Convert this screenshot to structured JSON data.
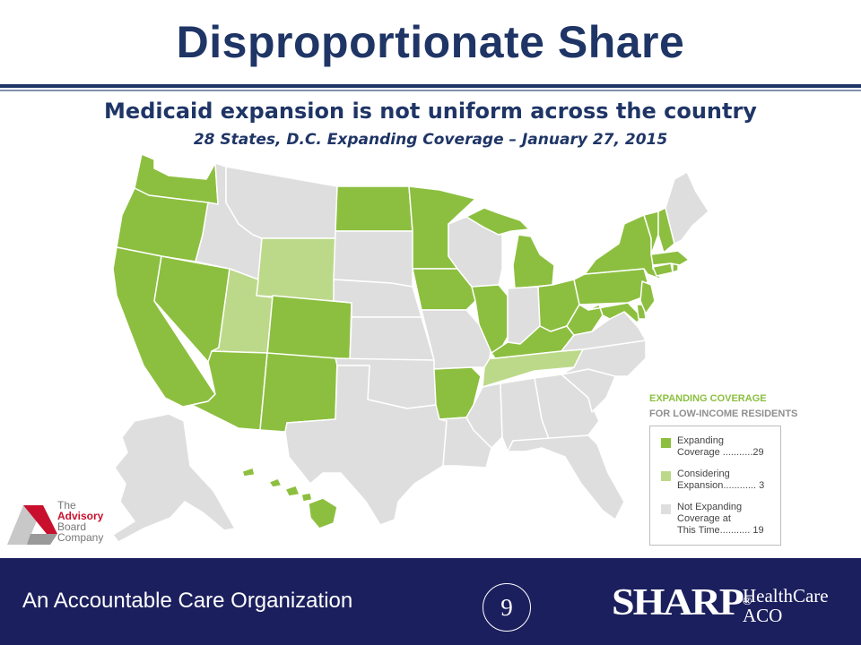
{
  "header": {
    "title": "Disproportionate Share"
  },
  "content": {
    "subtitle": "Medicaid expansion is not uniform across the country",
    "subsubtitle": "28 States, D.C. Expanding Coverage – January 27, 2015"
  },
  "legend": {
    "heading_line1": "EXPANDING COVERAGE",
    "heading_line2": "FOR LOW-INCOME RESIDENTS",
    "items": [
      {
        "label": "Expanding\nCoverage ...........29",
        "color": "#8cbf3f"
      },
      {
        "label": "Considering\nExpansion............ 3",
        "color": "#bcd98a"
      },
      {
        "label": "Not Expanding\nCoverage at\nThis Time........... 19",
        "color": "#dedede"
      }
    ]
  },
  "map_colors": {
    "expanding": "#8cbf3f",
    "considering": "#bcd98a",
    "not_expanding": "#dedede",
    "border": "#ffffff"
  },
  "advisory_logo": {
    "line1": "The",
    "line2": "Advisory",
    "line3": "Board",
    "line4": "Company"
  },
  "footer": {
    "tagline": "An Accountable Care Organization",
    "page_number": "9",
    "brand": "SHARP",
    "brand_mark": "®",
    "brand_line1": "HealthCare",
    "brand_line2": "ACO",
    "background_color": "#1c1f5e"
  }
}
